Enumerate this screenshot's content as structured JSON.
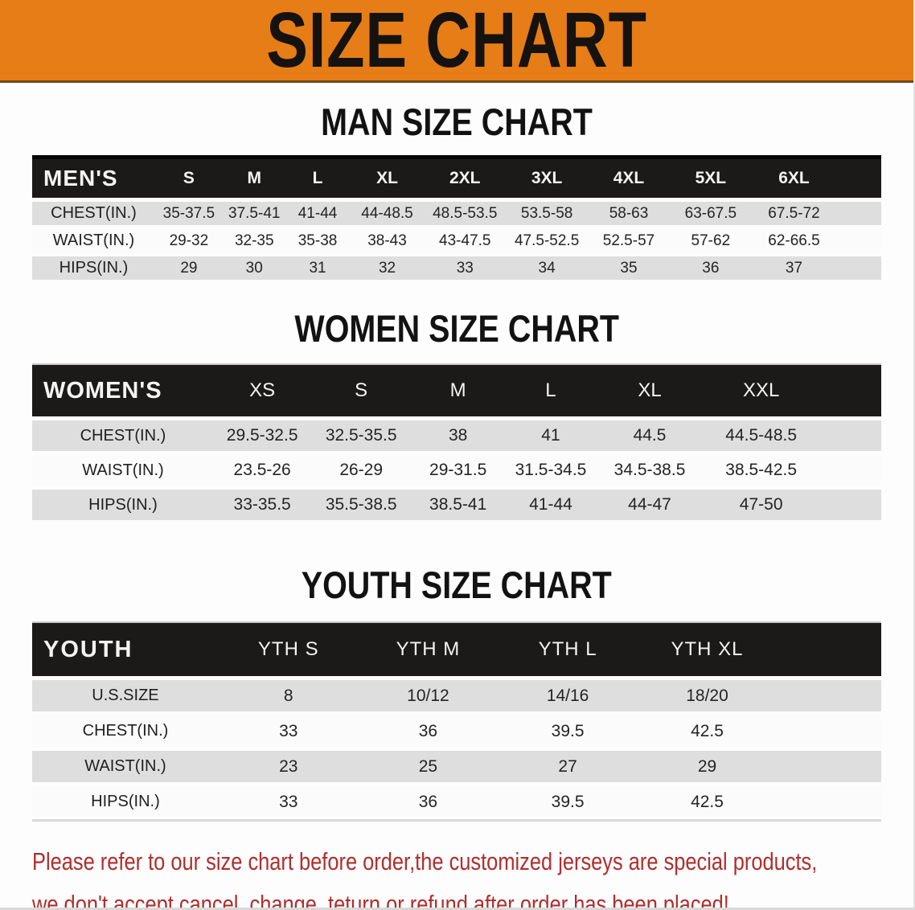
{
  "banner": {
    "title": "SIZE CHART"
  },
  "chart_data": [
    {
      "type": "table",
      "title": "MAN SIZE CHART",
      "columns": [
        "MEN'S",
        "S",
        "M",
        "L",
        "XL",
        "2XL",
        "3XL",
        "4XL",
        "5XL",
        "6XL"
      ],
      "rows": [
        [
          "CHEST(IN.)",
          "35-37.5",
          "37.5-41",
          "41-44",
          "44-48.5",
          "48.5-53.5",
          "53.5-58",
          "58-63",
          "63-67.5",
          "67.5-72"
        ],
        [
          "WAIST(IN.)",
          "29-32",
          "32-35",
          "35-38",
          "38-43",
          "43-47.5",
          "47.5-52.5",
          "52.5-57",
          "57-62",
          "62-66.5"
        ],
        [
          "HIPS(IN.)",
          "29",
          "30",
          "31",
          "32",
          "33",
          "34",
          "35",
          "36",
          "37"
        ]
      ]
    },
    {
      "type": "table",
      "title": "WOMEN SIZE CHART",
      "columns": [
        "WOMEN'S",
        "XS",
        "S",
        "M",
        "L",
        "XL",
        "XXL"
      ],
      "rows": [
        [
          "CHEST(IN.)",
          "29.5-32.5",
          "32.5-35.5",
          "38",
          "41",
          "44.5",
          "44.5-48.5"
        ],
        [
          "WAIST(IN.)",
          "23.5-26",
          "26-29",
          "29-31.5",
          "31.5-34.5",
          "34.5-38.5",
          "38.5-42.5"
        ],
        [
          "HIPS(IN.)",
          "33-35.5",
          "35.5-38.5",
          "38.5-41",
          "41-44",
          "44-47",
          "47-50"
        ]
      ]
    },
    {
      "type": "table",
      "title": "YOUTH SIZE CHART",
      "columns": [
        "YOUTH",
        "YTH S",
        "YTH M",
        "YTH L",
        "YTH XL"
      ],
      "rows": [
        [
          "U.S.SIZE",
          "8",
          "10/12",
          "14/16",
          "18/20"
        ],
        [
          "CHEST(IN.)",
          "33",
          "36",
          "39.5",
          "42.5"
        ],
        [
          "WAIST(IN.)",
          "23",
          "25",
          "27",
          "29"
        ],
        [
          "HIPS(IN.)",
          "33",
          "36",
          "39.5",
          "42.5"
        ]
      ]
    }
  ],
  "footer": {
    "line1": "Please refer to our size chart before order,the customized jerseys are special products,",
    "line2": "we don't accept cancel, change, teturn or refund after order has been placed!"
  },
  "colors": {
    "banner_orange": "#E67D16",
    "table_header_black": "#1B1A19",
    "row_stripe_gray": "#DEDEDE",
    "note_red": "#B02E2E"
  }
}
